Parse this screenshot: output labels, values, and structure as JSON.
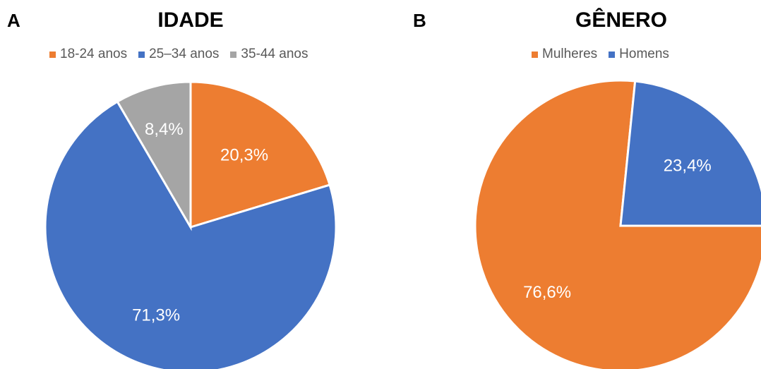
{
  "chart_data": [
    {
      "type": "pie",
      "panel_label": "A",
      "title": "IDADE",
      "legend_position": "top",
      "slices": [
        {
          "name": "18-24 anos",
          "value": 20.3,
          "label": "20,3%",
          "color": "#ED7D31"
        },
        {
          "name": "25–34 anos",
          "value": 71.3,
          "label": "71,3%",
          "color": "#4472C4"
        },
        {
          "name": "35-44 anos",
          "value": 8.4,
          "label": "8,4%",
          "color": "#A5A5A5"
        }
      ]
    },
    {
      "type": "pie",
      "panel_label": "B",
      "title": "GÊNERO",
      "legend_position": "top",
      "slices": [
        {
          "name": "Mulheres",
          "value": 76.6,
          "label": "76,6%",
          "color": "#ED7D31"
        },
        {
          "name": "Homens",
          "value": 23.4,
          "label": "23,4%",
          "color": "#4472C4"
        }
      ]
    }
  ]
}
